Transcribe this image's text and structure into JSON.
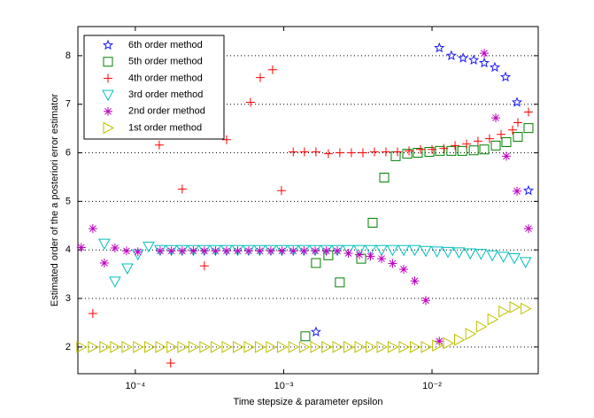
{
  "chart_data": {
    "type": "scatter",
    "xlabel": "Time stepsize & parameter epsilon",
    "ylabel": "Estimated order of the a posteriori error estimator",
    "xscale": "log",
    "xlim": [
      4.1e-05,
      0.052
    ],
    "ylim": [
      1.45,
      8.6
    ],
    "xticks": [
      {
        "value": 0.0001,
        "label": "10⁻⁴"
      },
      {
        "value": 0.001,
        "label": "10⁻³"
      },
      {
        "value": 0.01,
        "label": "10⁻²"
      }
    ],
    "yticks": [
      2,
      3,
      4,
      5,
      6,
      7,
      8
    ],
    "grid": "y",
    "legend": "upper left",
    "series": [
      {
        "name": "6th order method",
        "color": "#1a1aff",
        "marker": "pentagram",
        "x": [
          0.00165,
          0.0112,
          0.0135,
          0.0162,
          0.0191,
          0.0225,
          0.0265,
          0.0313,
          0.0374,
          0.0447
        ],
        "values": [
          2.31,
          8.16,
          8.0,
          7.95,
          7.91,
          7.85,
          7.76,
          7.56,
          7.04,
          5.22
        ]
      },
      {
        "name": "5th order method",
        "color": "#008000",
        "marker": "square",
        "x": [
          0.0014,
          0.00165,
          0.002,
          0.00239,
          0.00333,
          0.00398,
          0.00476,
          0.00569,
          0.00681,
          0.00802,
          0.0096,
          0.0113,
          0.0135,
          0.016,
          0.0191,
          0.0225,
          0.0269,
          0.0317,
          0.0379,
          0.0447
        ],
        "values": [
          2.22,
          3.73,
          3.89,
          3.33,
          3.82,
          4.56,
          5.49,
          5.93,
          5.98,
          6.0,
          6.02,
          6.04,
          6.04,
          6.04,
          6.05,
          6.07,
          6.15,
          6.22,
          6.33,
          6.51
        ]
      },
      {
        "name": "4th order method",
        "color": "#ff0000",
        "marker": "plus",
        "x": [
          5.17e-05,
          0.000145,
          0.000173,
          0.000207,
          0.000292,
          0.000412,
          0.000597,
          0.000695,
          0.000842,
          0.000966,
          0.00116,
          0.00138,
          0.00165,
          0.002,
          0.00239,
          0.00286,
          0.00342,
          0.00409,
          0.00489,
          0.00585,
          0.007,
          0.00836,
          0.01,
          0.012,
          0.0143,
          0.0171,
          0.0204,
          0.0244,
          0.0292,
          0.0349,
          0.0379,
          0.0447
        ],
        "values": [
          2.69,
          6.16,
          1.67,
          5.25,
          3.67,
          6.27,
          7.04,
          7.55,
          7.71,
          5.22,
          6.02,
          6.02,
          6.02,
          5.98,
          6.0,
          6.0,
          6.0,
          6.02,
          6.02,
          6.02,
          6.04,
          6.07,
          6.07,
          6.09,
          6.15,
          6.18,
          6.24,
          6.29,
          6.38,
          6.47,
          6.62,
          6.84
        ]
      },
      {
        "name": "3rd order method",
        "color": "#00bfbf",
        "marker": "triangle-down",
        "x": [
          6.18e-05,
          7.29e-05,
          8.84e-05,
          0.000104,
          0.000123,
          0.000147,
          0.000175,
          0.000207,
          0.000246,
          0.000292,
          0.000347,
          0.000412,
          0.00049,
          0.000581,
          0.00069,
          0.000819,
          0.000973,
          0.00116,
          0.00137,
          0.00163,
          0.00194,
          0.0023,
          0.00273,
          0.00324,
          0.00385,
          0.00457,
          0.00542,
          0.00644,
          0.00765,
          0.00908,
          0.0108,
          0.0128,
          0.0152,
          0.0181,
          0.0214,
          0.0255,
          0.0303,
          0.0359,
          0.0427
        ],
        "values": [
          4.13,
          3.35,
          3.62,
          3.91,
          4.07,
          4.0,
          4.0,
          4.0,
          4.0,
          4.0,
          4.0,
          4.0,
          4.0,
          4.0,
          4.0,
          4.0,
          4.0,
          4.0,
          4.0,
          4.0,
          4.0,
          4.0,
          4.0,
          4.0,
          4.0,
          4.0,
          4.0,
          4.0,
          4.0,
          3.98,
          3.97,
          3.96,
          3.95,
          3.93,
          3.92,
          3.89,
          3.86,
          3.83,
          3.75
        ]
      },
      {
        "name": "2nd order method",
        "color": "#bf00bf",
        "marker": "asterisk",
        "x": [
          4.32e-05,
          5.17e-05,
          6.18e-05,
          7.29e-05,
          8.72e-05,
          0.000104,
          0.000147,
          0.000175,
          0.000207,
          0.000246,
          0.000292,
          0.000347,
          0.000412,
          0.00049,
          0.000581,
          0.00069,
          0.000819,
          0.000973,
          0.00116,
          0.00137,
          0.00163,
          0.00194,
          0.0023,
          0.00273,
          0.00324,
          0.00385,
          0.00457,
          0.00542,
          0.00644,
          0.00765,
          0.00908,
          0.0112,
          0.0225,
          0.0269,
          0.0317,
          0.0374,
          0.0447
        ],
        "values": [
          4.05,
          4.44,
          3.73,
          4.04,
          3.98,
          3.96,
          3.98,
          3.98,
          3.98,
          3.98,
          3.98,
          3.98,
          3.98,
          3.98,
          3.98,
          3.98,
          3.98,
          3.98,
          3.98,
          3.98,
          3.98,
          3.98,
          3.98,
          3.93,
          3.9,
          3.87,
          3.82,
          3.72,
          3.6,
          3.36,
          2.96,
          2.12,
          8.05,
          6.72,
          5.93,
          5.21,
          4.44
        ]
      },
      {
        "name": "1st order method",
        "color": "#bfbf00",
        "marker": "triangle-right",
        "x": [
          4.32e-05,
          5.17e-05,
          6.18e-05,
          7.29e-05,
          8.72e-05,
          0.000104,
          0.000124,
          0.000147,
          0.000175,
          0.000207,
          0.000246,
          0.000292,
          0.000347,
          0.000412,
          0.00049,
          0.000581,
          0.00069,
          0.000819,
          0.000973,
          0.00116,
          0.00137,
          0.00163,
          0.00194,
          0.0023,
          0.00273,
          0.00324,
          0.00385,
          0.00457,
          0.00542,
          0.00644,
          0.00765,
          0.00908,
          0.0108,
          0.0128,
          0.0152,
          0.0181,
          0.0214,
          0.0255,
          0.0303,
          0.0359,
          0.0427
        ],
        "values": [
          2.0,
          2.0,
          2.0,
          2.0,
          2.0,
          2.0,
          2.0,
          2.0,
          2.0,
          2.0,
          2.0,
          2.0,
          2.0,
          2.0,
          2.0,
          2.0,
          2.0,
          2.0,
          2.0,
          2.0,
          2.0,
          2.0,
          2.0,
          2.0,
          2.0,
          2.0,
          2.0,
          2.0,
          2.0,
          2.0,
          2.0,
          2.0,
          2.03,
          2.08,
          2.15,
          2.27,
          2.42,
          2.57,
          2.73,
          2.82,
          2.79
        ]
      }
    ]
  }
}
